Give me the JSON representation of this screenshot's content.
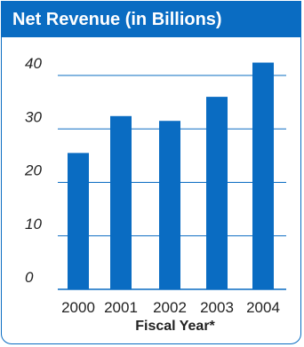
{
  "chart_data": {
    "type": "bar",
    "title": "Net Revenue (in Billions)",
    "xlabel": "Fiscal Year*",
    "ylabel": "",
    "categories": [
      "2000",
      "2001",
      "2002",
      "2003",
      "2004"
    ],
    "values": [
      25.5,
      32.4,
      31.5,
      36.0,
      42.4
    ],
    "ylim": [
      0,
      45
    ],
    "yticks": [
      0,
      10,
      20,
      30,
      40
    ],
    "grid": true,
    "colors": {
      "bar": "#0a6cc2",
      "grid": "#0a6cc2",
      "header": "#0a6cc2"
    }
  }
}
